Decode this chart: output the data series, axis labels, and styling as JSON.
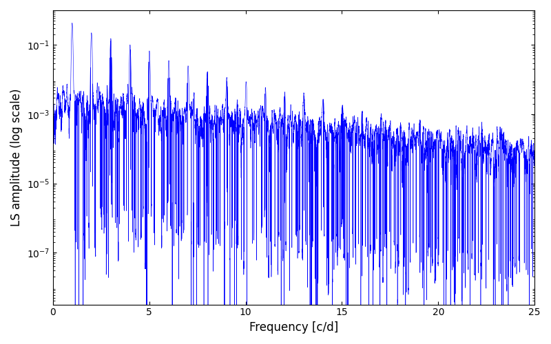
{
  "line_color": "#0000FF",
  "xlabel": "Frequency [c/d]",
  "ylabel": "LS amplitude (log scale)",
  "title": "",
  "xlim": [
    0,
    25
  ],
  "ylim_log": [
    -8.5,
    0
  ],
  "freq_max": 25.0,
  "n_points": 15000,
  "seed": 12345,
  "background_color": "#ffffff",
  "linewidth": 0.4,
  "figsize": [
    8.0,
    5.0
  ],
  "dpi": 100,
  "yticks": [
    1e-07,
    1e-05,
    0.001,
    0.1
  ],
  "xticks": [
    0,
    5,
    10,
    15,
    20,
    25
  ],
  "spine_color": "#000000"
}
